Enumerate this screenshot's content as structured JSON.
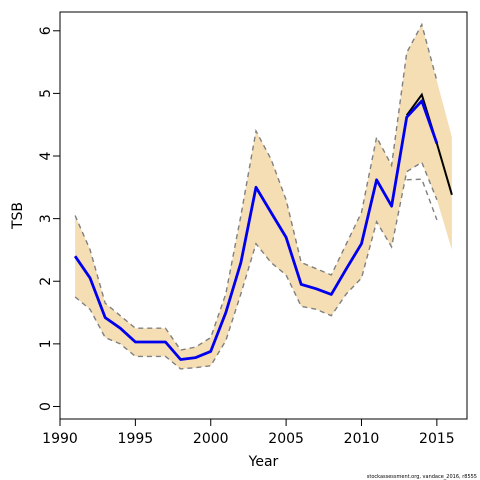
{
  "chart_data": {
    "type": "line",
    "xlabel": "Year",
    "ylabel": "TSB",
    "xlim": [
      1990,
      2017
    ],
    "ylim": [
      -0.2,
      6.3
    ],
    "x_ticks": [
      1990,
      1995,
      2000,
      2005,
      2010,
      2015
    ],
    "y_ticks": [
      0,
      1,
      2,
      3,
      4,
      5,
      6
    ],
    "grid": false,
    "footnote": "stockassessment.org, vandace_2016, r8555",
    "colors": {
      "band_fill": "#f5deb3",
      "band_border": "#808080",
      "previous_line": "#000000",
      "current_line": "#0000ee"
    },
    "band": {
      "x": [
        1991,
        1992,
        1993,
        1994,
        1995,
        1996,
        1997,
        1998,
        1999,
        2000,
        2001,
        2002,
        2003,
        2004,
        2005,
        2006,
        2007,
        2008,
        2009,
        2010,
        2011,
        2012,
        2013,
        2014,
        2015,
        2016
      ],
      "upper": [
        3.05,
        2.5,
        1.65,
        1.45,
        1.25,
        1.25,
        1.25,
        0.9,
        0.95,
        1.1,
        1.8,
        3.05,
        4.4,
        3.95,
        3.3,
        2.3,
        2.2,
        2.1,
        2.6,
        3.1,
        4.3,
        3.85,
        5.65,
        6.1,
        5.2,
        4.3
      ],
      "lower": [
        1.75,
        1.55,
        1.1,
        1.0,
        0.8,
        0.8,
        0.8,
        0.6,
        0.62,
        0.65,
        1.05,
        1.8,
        2.6,
        2.3,
        2.1,
        1.6,
        1.55,
        1.45,
        1.8,
        2.05,
        2.95,
        2.55,
        3.75,
        3.9,
        3.3,
        2.5
      ]
    },
    "series": [
      {
        "x": [
          2013,
          2014,
          2015,
          2016
        ],
        "values": [
          4.65,
          4.98,
          4.2,
          3.38
        ]
      },
      {
        "x": [
          1991,
          1992,
          1993,
          1994,
          1995,
          1996,
          1997,
          1998,
          1999,
          2000,
          2001,
          2002,
          2003,
          2004,
          2005,
          2006,
          2007,
          2008,
          2009,
          2010,
          2011,
          2012,
          2013,
          2014,
          2015
        ],
        "values": [
          2.4,
          2.05,
          1.42,
          1.25,
          1.03,
          1.03,
          1.03,
          0.75,
          0.78,
          0.88,
          1.5,
          2.3,
          3.5,
          3.1,
          2.7,
          1.95,
          1.88,
          1.79,
          2.2,
          2.6,
          3.62,
          3.2,
          4.62,
          4.88,
          4.2
        ]
      },
      {
        "x": [
          2013,
          2014,
          2015
        ],
        "values": [
          3.62,
          3.63,
          2.98
        ]
      }
    ]
  }
}
